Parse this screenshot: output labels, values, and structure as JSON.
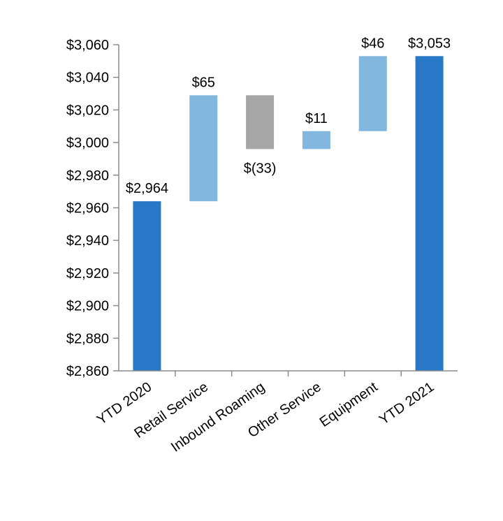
{
  "chart_data": {
    "type": "waterfall",
    "title": "",
    "xlabel": "",
    "ylabel": "",
    "ylim": [
      2860,
      3060
    ],
    "ytick_step": 20,
    "ytick_prefix": "$",
    "grid": false,
    "legend": "none",
    "colors": {
      "total": "#2878c8",
      "increase": "#82b8e0",
      "decrease": "#a6a6a6",
      "axis": "#8c8c8c"
    },
    "categories": [
      "YTD 2020",
      "Retail Service",
      "Inbound Roaming",
      "Other Service",
      "Equipment",
      "YTD 2021"
    ],
    "bars": [
      {
        "category": "YTD 2020",
        "kind": "total",
        "start": 2860,
        "end": 2964,
        "label": "$2,964"
      },
      {
        "category": "Retail Service",
        "kind": "increase",
        "start": 2964,
        "end": 3029,
        "label": "$65"
      },
      {
        "category": "Inbound Roaming",
        "kind": "decrease",
        "start": 3029,
        "end": 2996,
        "label": "$(33)"
      },
      {
        "category": "Other Service",
        "kind": "increase",
        "start": 2996,
        "end": 3007,
        "label": "$11"
      },
      {
        "category": "Equipment",
        "kind": "increase",
        "start": 3007,
        "end": 3053,
        "label": "$46"
      },
      {
        "category": "YTD 2021",
        "kind": "total",
        "start": 2860,
        "end": 3053,
        "label": "$3,053"
      }
    ]
  }
}
